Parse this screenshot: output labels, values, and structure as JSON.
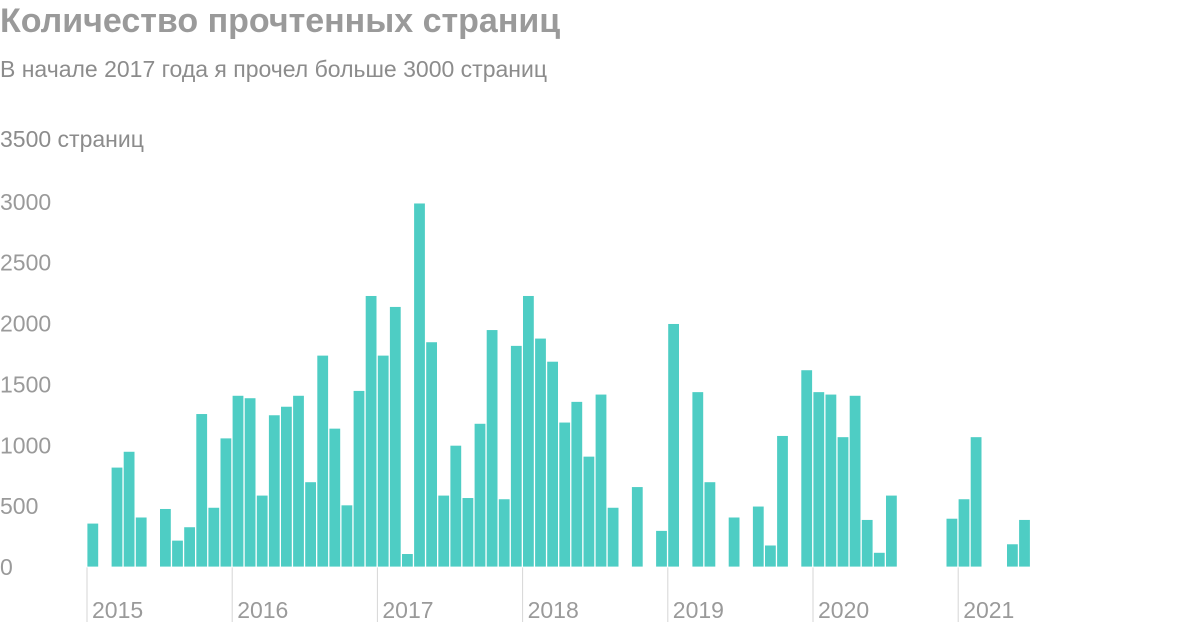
{
  "header": {
    "title": "Количество прочтенных страниц",
    "subtitle": "В начале 2017 года я прочел больше 3000 страниц"
  },
  "chart_data": {
    "type": "bar",
    "title": "Количество прочтенных страниц",
    "subtitle": "В начале 2017 года я прочел больше 3000 страниц",
    "ylabel": "3500 страниц",
    "ylim": [
      0,
      3500
    ],
    "yticks": [
      0,
      500,
      1000,
      1500,
      2000,
      2500,
      3000
    ],
    "ytick_labels": [
      "0",
      "500",
      "1000",
      "1500",
      "2000",
      "2500",
      "3000"
    ],
    "grid": false,
    "bar_color": "#4ecdc4",
    "x_labels": [
      "2015",
      "2016",
      "2017",
      "2018",
      "2019",
      "2020",
      "2021"
    ],
    "x_labels_start_month": 1,
    "months_per_year": 12,
    "series": [
      {
        "values": [
          360,
          0,
          820,
          950,
          410,
          0,
          480,
          220,
          330,
          1260,
          490,
          1060,
          1410,
          1390,
          590,
          1250,
          1320,
          1410,
          700,
          1740,
          1140,
          510,
          1450,
          2230,
          1740,
          2140,
          110,
          2990,
          1850,
          590,
          1000,
          570,
          1180,
          1950,
          560,
          1820,
          2230,
          1880,
          1690,
          1190,
          1360,
          910,
          1420,
          490,
          0,
          660,
          0,
          300,
          2000,
          0,
          1440,
          700,
          0,
          410,
          0,
          500,
          180,
          1080,
          0,
          1620,
          1440,
          1420,
          1070,
          1410,
          390,
          120,
          590,
          0,
          0,
          0,
          0,
          400,
          560,
          1070,
          0,
          0,
          190,
          390
        ]
      }
    ]
  }
}
